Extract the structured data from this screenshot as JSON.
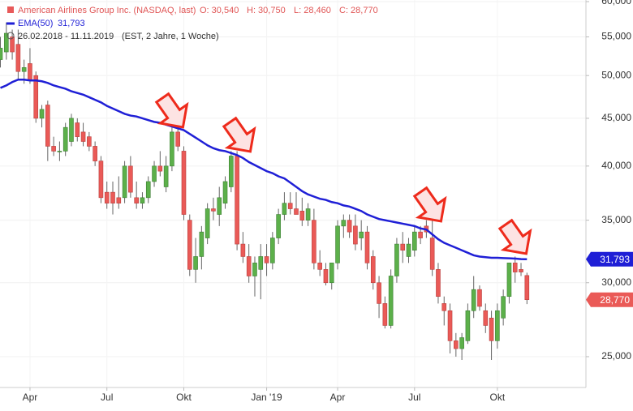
{
  "chart_data": {
    "type": "candlestick",
    "title": "American Airlines Group Inc. (NASDAQ, last)",
    "header_values": [
      "O: 30,540",
      "H: 30,750",
      "L: 28,460",
      "C: 28,770"
    ],
    "date_range": "26.02.2018 - 11.11.2019",
    "range_note": "(EST, 2 Jahre, 1 Woche)",
    "categories": [
      null,
      null,
      null,
      null,
      null,
      "Apr",
      null,
      null,
      null,
      null,
      null,
      null,
      null,
      null,
      null,
      null,
      null,
      null,
      "Jul",
      null,
      null,
      null,
      null,
      null,
      null,
      null,
      null,
      null,
      null,
      null,
      null,
      "Okt",
      null,
      null,
      null,
      null,
      null,
      null,
      null,
      null,
      null,
      null,
      null,
      null,
      null,
      "Jan '19",
      null,
      null,
      null,
      null,
      null,
      null,
      null,
      null,
      null,
      null,
      null,
      "Apr",
      null,
      null,
      null,
      null,
      null,
      null,
      null,
      null,
      null,
      null,
      null,
      null,
      "Jul",
      null,
      null,
      null,
      null,
      null,
      null,
      null,
      null,
      null,
      null,
      null,
      null,
      null,
      "Okt",
      null,
      null,
      null,
      null,
      null
    ],
    "open": [
      52,
      53,
      55,
      54,
      50.5,
      51.5,
      50,
      45,
      46.5,
      42,
      41.5,
      41.5,
      42.5,
      44.5,
      43.5,
      43,
      42,
      40.5,
      37.5,
      37.5,
      37,
      37,
      40,
      37,
      36.5,
      37,
      38.5,
      40,
      38,
      40,
      43.5,
      41.5,
      35,
      31,
      32,
      33.5,
      36,
      35.5,
      36.5,
      38,
      41,
      33,
      32,
      30.5,
      31,
      32,
      31.5,
      33.5,
      35.5,
      36.5,
      36,
      35.8,
      35,
      35,
      31.5,
      31,
      30,
      31.5,
      34.5,
      35,
      34.5,
      33.5,
      34,
      32,
      30,
      28.5,
      27,
      30.5,
      33,
      32,
      32.5,
      34,
      34.5,
      33.5,
      31,
      28.5,
      28,
      26,
      25.5,
      26,
      28,
      29.5,
      28,
      27.5,
      26,
      27.5,
      29,
      31.5,
      31,
      30.54
    ],
    "high": [
      55,
      57,
      56,
      56,
      52,
      53.5,
      50.5,
      46.5,
      47,
      43,
      42.5,
      44.5,
      45.5,
      45,
      44.5,
      43.5,
      42.5,
      41,
      38.5,
      38.5,
      39,
      40.5,
      41,
      38.5,
      37.5,
      39,
      40.5,
      41.5,
      41,
      44,
      44,
      42,
      35.5,
      33.5,
      34.5,
      36.5,
      37,
      38,
      39,
      41.5,
      41.5,
      34,
      33,
      32,
      33,
      33,
      34,
      36,
      37.5,
      37.5,
      37.5,
      37,
      36.5,
      36,
      32.5,
      31.5,
      31.5,
      35,
      35.5,
      35.5,
      35.5,
      35,
      34.5,
      32.5,
      30.5,
      29,
      31,
      33.5,
      34,
      33.5,
      34.5,
      34.5,
      35,
      35.5,
      31.5,
      29,
      28.5,
      26.5,
      26.5,
      28.5,
      30.5,
      29.8,
      28.5,
      28,
      28.5,
      29.5,
      31.5,
      32,
      31.5,
      30.75
    ],
    "low": [
      51,
      52,
      52,
      49.5,
      49,
      49,
      44.5,
      44,
      40.5,
      41,
      40.5,
      41,
      42,
      42.5,
      42,
      41.5,
      40,
      36.5,
      36,
      35.5,
      36,
      36.5,
      37,
      36,
      36,
      36.5,
      38,
      39,
      37.5,
      39.5,
      41.5,
      35,
      30.5,
      30,
      31,
      33,
      35,
      34.5,
      36,
      37.5,
      32.5,
      31.5,
      30,
      29,
      28.8,
      30.5,
      31,
      33,
      35,
      35.5,
      35.5,
      34.5,
      34.5,
      31,
      30.5,
      29.8,
      29.5,
      31,
      33.5,
      33.5,
      32.5,
      32.5,
      31,
      29.5,
      27.5,
      26.8,
      26.8,
      30,
      31.5,
      31.5,
      32,
      33,
      33.5,
      30.5,
      28.5,
      27,
      25.2,
      25,
      24.8,
      25.8,
      27.5,
      28,
      26.5,
      24.8,
      25.5,
      27,
      28.5,
      30,
      30.5,
      28.46
    ],
    "close": [
      53.5,
      55.5,
      53,
      50.5,
      51,
      49.5,
      45,
      46,
      42,
      41.5,
      41.5,
      44,
      45,
      43,
      42.5,
      42,
      40.5,
      37,
      36.5,
      36.5,
      36.5,
      40,
      37.5,
      36.5,
      37,
      38.5,
      40,
      39.5,
      40,
      43.5,
      42,
      35.5,
      31,
      32,
      34,
      36,
      35.8,
      37,
      38.5,
      41,
      33,
      32,
      30.5,
      31.5,
      32,
      31.5,
      33.5,
      35.5,
      36.5,
      36,
      35.5,
      35,
      36,
      31.5,
      31,
      30,
      31.5,
      34.5,
      35,
      34,
      33,
      34,
      31.5,
      30,
      28.5,
      27,
      30.5,
      33,
      32.5,
      33,
      34,
      33.5,
      34,
      31,
      29,
      28,
      26,
      25.5,
      26.2,
      28,
      29.5,
      28.3,
      27,
      26,
      28,
      29,
      31.5,
      30.8,
      30.8,
      28.77
    ],
    "up_color": "#5cb04a",
    "down_color": "#ea5a57",
    "last_label": "28,770",
    "series": [
      {
        "name": "EMA(50)",
        "color": "#1f1fd6",
        "value_label": "31,793",
        "values": [
          48.5,
          48.8,
          49.2,
          49.5,
          49.5,
          49.4,
          49.4,
          49.3,
          49.1,
          48.8,
          48.6,
          48.4,
          48.1,
          47.9,
          47.7,
          47.4,
          47.1,
          46.8,
          46.4,
          46.1,
          45.8,
          45.5,
          45.3,
          45.2,
          45.0,
          44.8,
          44.6,
          44.5,
          44.3,
          44.1,
          43.9,
          43.7,
          43.3,
          42.9,
          42.5,
          42.1,
          41.8,
          41.6,
          41.5,
          41.3,
          41.1,
          40.8,
          40.4,
          40.1,
          39.8,
          39.5,
          39.3,
          39.0,
          38.8,
          38.4,
          38.0,
          37.6,
          37.3,
          37.1,
          36.9,
          36.8,
          36.6,
          36.5,
          36.3,
          36.2,
          36.0,
          35.8,
          35.5,
          35.3,
          35.1,
          35.0,
          34.9,
          34.8,
          34.7,
          34.6,
          34.5,
          34.3,
          34.2,
          33.8,
          33.4,
          33.1,
          32.9,
          32.7,
          32.5,
          32.3,
          32.1,
          32.0,
          31.95,
          31.9,
          31.9,
          31.88,
          31.86,
          31.84,
          31.8,
          31.793
        ]
      }
    ],
    "ylim": [
      23.17,
      60.24
    ],
    "log_scale": true,
    "grid": true,
    "yticks": [
      {
        "value": 25,
        "label": "25,000"
      },
      {
        "value": 30,
        "label": "30,000"
      },
      {
        "value": 35,
        "label": "35,000"
      },
      {
        "value": 40,
        "label": "40,000"
      },
      {
        "value": 45,
        "label": "45,000"
      },
      {
        "value": 50,
        "label": "50,000"
      },
      {
        "value": 55,
        "label": "55,000"
      },
      {
        "value": 60,
        "label": "60,000"
      }
    ]
  }
}
